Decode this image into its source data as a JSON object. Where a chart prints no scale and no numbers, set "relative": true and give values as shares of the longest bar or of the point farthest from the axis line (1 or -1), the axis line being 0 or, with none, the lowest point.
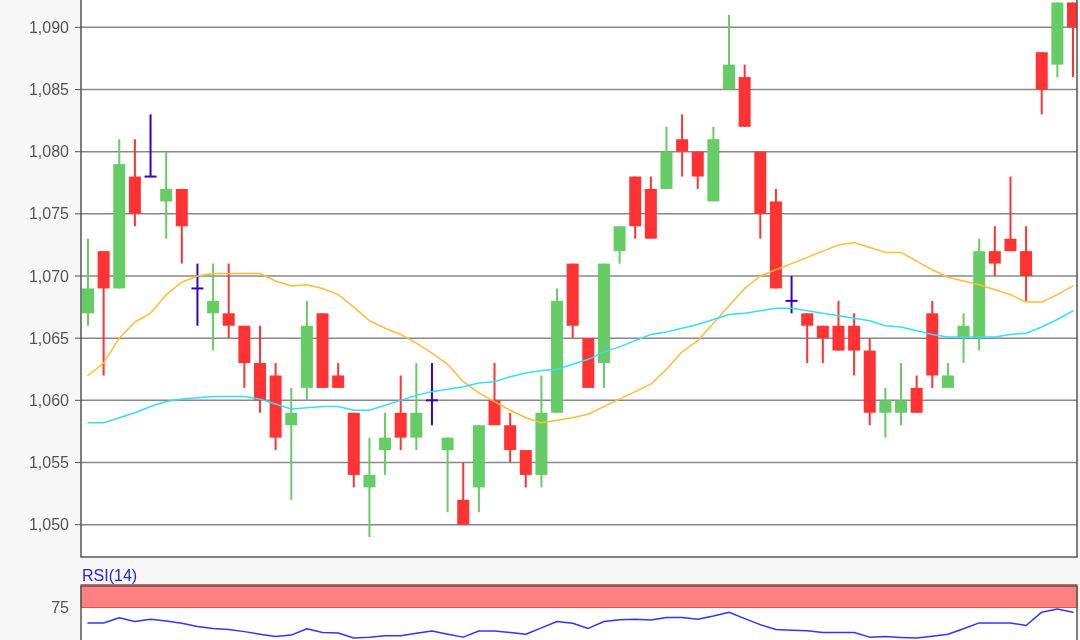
{
  "chart_data": [
    {
      "type": "candlestick",
      "categories": [
        null,
        null,
        null,
        null,
        null,
        null,
        null,
        null,
        null,
        null,
        null,
        null,
        null,
        null,
        null,
        null,
        null,
        null,
        null,
        null,
        null,
        null,
        null,
        null,
        null,
        null,
        null,
        null,
        null,
        null,
        null,
        null,
        null,
        null,
        null,
        null,
        null,
        null,
        null,
        null,
        null,
        null,
        null,
        null,
        null,
        null,
        null,
        null,
        null,
        null,
        null,
        null,
        null,
        null,
        null,
        null,
        null,
        null,
        null,
        null,
        null,
        null,
        null,
        null
      ],
      "ohlc": [
        [
          1067,
          1073,
          1066,
          1069
        ],
        [
          1072,
          1072,
          1062,
          1069
        ],
        [
          1069,
          1081,
          1069,
          1079
        ],
        [
          1078,
          1081,
          1074,
          1075
        ],
        [
          1078,
          1083,
          1078,
          1078
        ],
        [
          1076,
          1080,
          1073,
          1077
        ],
        [
          1077,
          1077,
          1071,
          1074
        ],
        [
          1069,
          1071,
          1066,
          1069
        ],
        [
          1067,
          1071,
          1064,
          1068
        ],
        [
          1067,
          1071,
          1065,
          1066
        ],
        [
          1066,
          1066,
          1061,
          1063
        ],
        [
          1063,
          1066,
          1059,
          1060
        ],
        [
          1062,
          1063,
          1056,
          1057
        ],
        [
          1058,
          1061,
          1052,
          1059
        ],
        [
          1061,
          1068,
          1060,
          1066
        ],
        [
          1067,
          1067,
          1061,
          1061
        ],
        [
          1062,
          1063,
          1061,
          1061
        ],
        [
          1059,
          1059,
          1053,
          1054
        ],
        [
          1053,
          1057,
          1049,
          1054
        ],
        [
          1056,
          1059,
          1054,
          1057
        ],
        [
          1059,
          1062,
          1056,
          1057
        ],
        [
          1057,
          1063,
          1056,
          1059
        ],
        [
          1060,
          1063,
          1058,
          1060
        ],
        [
          1056,
          1057,
          1051,
          1057
        ],
        [
          1052,
          1055,
          1050,
          1050
        ],
        [
          1053,
          1058,
          1051,
          1058
        ],
        [
          1060,
          1063,
          1058,
          1058
        ],
        [
          1058,
          1059,
          1055,
          1056
        ],
        [
          1056,
          1056,
          1053,
          1054
        ],
        [
          1054,
          1062,
          1053,
          1059
        ],
        [
          1059,
          1069,
          1059,
          1068
        ],
        [
          1071,
          1071,
          1065,
          1066
        ],
        [
          1065,
          1065,
          1061,
          1061
        ],
        [
          1063,
          1071,
          1061,
          1071
        ],
        [
          1072,
          1074,
          1071,
          1074
        ],
        [
          1078,
          1078,
          1073,
          1074
        ],
        [
          1077,
          1078,
          1073,
          1073
        ],
        [
          1077,
          1082,
          1077,
          1080
        ],
        [
          1081,
          1083,
          1078,
          1080
        ],
        [
          1080,
          1080,
          1077,
          1078
        ],
        [
          1076,
          1082,
          1076,
          1081
        ],
        [
          1085,
          1091,
          1085,
          1087
        ],
        [
          1086,
          1087,
          1082,
          1082
        ],
        [
          1080,
          1080,
          1073,
          1075
        ],
        [
          1076,
          1077,
          1069,
          1069
        ],
        [
          1068,
          1070,
          1067,
          1068
        ],
        [
          1067,
          1067,
          1063,
          1066
        ],
        [
          1066,
          1066,
          1063,
          1065
        ],
        [
          1066,
          1068,
          1064,
          1064
        ],
        [
          1066,
          1067,
          1062,
          1064
        ],
        [
          1064,
          1065,
          1058,
          1059
        ],
        [
          1059,
          1061,
          1057,
          1060
        ],
        [
          1059,
          1063,
          1058,
          1060
        ],
        [
          1061,
          1062,
          1059,
          1059
        ],
        [
          1067,
          1068,
          1061,
          1062
        ],
        [
          1061,
          1063,
          1061,
          1062
        ],
        [
          1065,
          1067,
          1063,
          1066
        ],
        [
          1065,
          1073,
          1064,
          1072
        ],
        [
          1072,
          1074,
          1070,
          1071
        ],
        [
          1073,
          1078,
          1072,
          1072
        ],
        [
          1072,
          1074,
          1068,
          1070
        ],
        [
          1088,
          1088,
          1083,
          1085
        ],
        [
          1087,
          1092,
          1086,
          1092
        ],
        [
          1092,
          1092,
          1086,
          1090
        ]
      ],
      "colors": [
        "#66cc66",
        "#ff3333",
        "#66cc66",
        "#ff3333",
        "#3300cc",
        "#66cc66",
        "#ff3333",
        "#3300cc",
        "#66cc66",
        "#ff3333",
        "#ff3333",
        "#ff3333",
        "#ff3333",
        "#66cc66",
        "#66cc66",
        "#ff3333",
        "#ff3333",
        "#ff3333",
        "#66cc66",
        "#66cc66",
        "#ff3333",
        "#66cc66",
        "#3300cc",
        "#66cc66",
        "#ff3333",
        "#66cc66",
        "#ff3333",
        "#ff3333",
        "#ff3333",
        "#66cc66",
        "#66cc66",
        "#ff3333",
        "#ff3333",
        "#66cc66",
        "#66cc66",
        "#ff3333",
        "#ff3333",
        "#66cc66",
        "#ff3333",
        "#ff3333",
        "#66cc66",
        "#66cc66",
        "#ff3333",
        "#ff3333",
        "#ff3333",
        "#3300cc",
        "#ff3333",
        "#ff3333",
        "#ff3333",
        "#ff3333",
        "#ff3333",
        "#66cc66",
        "#66cc66",
        "#ff3333",
        "#ff3333",
        "#66cc66",
        "#66cc66",
        "#66cc66",
        "#ff3333",
        "#ff3333",
        "#ff3333",
        "#ff3333",
        "#66cc66",
        "#ff3333"
      ],
      "series": [
        {
          "type": "line",
          "color": "#ffbb33",
          "values": [
            1062.0,
            1063.0,
            1065.0,
            1066.3,
            1067.0,
            1068.5,
            1069.5,
            1070.0,
            1070.2,
            1070.2,
            1070.2,
            1070.2,
            1069.6,
            1069.2,
            1069.3,
            1069.0,
            1068.5,
            1067.5,
            1066.4,
            1065.8,
            1065.3,
            1064.6,
            1063.8,
            1062.9,
            1061.5,
            1060.6,
            1059.9,
            1059.2,
            1058.6,
            1058.2,
            1058.4,
            1058.6,
            1058.9,
            1059.5,
            1060.1,
            1060.7,
            1061.3,
            1062.5,
            1063.9,
            1064.8,
            1066.2,
            1067.6,
            1069.0,
            1070.0,
            1070.5,
            1071.0,
            1071.5,
            1072.0,
            1072.5,
            1072.7,
            1072.3,
            1071.9,
            1071.9,
            1071.2,
            1070.5,
            1069.9,
            1069.6,
            1069.3,
            1068.9,
            1068.5,
            1067.9,
            1067.9,
            1068.5,
            1069.2
          ]
        },
        {
          "type": "line",
          "color": "#33ddff",
          "values": [
            1058.2,
            1058.2,
            1058.6,
            1059.0,
            1059.5,
            1059.9,
            1060.1,
            1060.2,
            1060.3,
            1060.3,
            1060.3,
            1060.1,
            1059.7,
            1059.3,
            1059.4,
            1059.5,
            1059.5,
            1059.2,
            1059.2,
            1059.6,
            1060.0,
            1060.4,
            1060.7,
            1060.9,
            1061.1,
            1061.4,
            1061.5,
            1061.9,
            1062.2,
            1062.4,
            1062.5,
            1062.9,
            1063.3,
            1063.9,
            1064.3,
            1064.8,
            1065.3,
            1065.5,
            1065.8,
            1066.1,
            1066.5,
            1066.9,
            1067.0,
            1067.2,
            1067.4,
            1067.4,
            1067.2,
            1067.0,
            1066.8,
            1066.6,
            1066.4,
            1066.0,
            1065.9,
            1065.6,
            1065.3,
            1065.1,
            1065.1,
            1065.1,
            1065.1,
            1065.3,
            1065.4,
            1065.9,
            1066.5,
            1067.2
          ]
        }
      ],
      "ylim": [
        1047.4,
        1092.2
      ],
      "yticks": [
        {
          "value": 1050,
          "label": "1,050"
        },
        {
          "value": 1055,
          "label": "1,055"
        },
        {
          "value": 1060,
          "label": "1,060"
        },
        {
          "value": 1065,
          "label": "1,065"
        },
        {
          "value": 1070,
          "label": "1,070"
        },
        {
          "value": 1075,
          "label": "1,075"
        },
        {
          "value": 1080,
          "label": "1,080"
        },
        {
          "value": 1085,
          "label": "1,085"
        },
        {
          "value": 1090,
          "label": "1,090"
        }
      ],
      "grid": "y",
      "tick_labels": "y"
    },
    {
      "type": "line",
      "title": "RSI(14)",
      "relative": true,
      "categories": [
        null,
        null,
        null,
        null,
        null,
        null,
        null,
        null,
        null,
        null,
        null,
        null,
        null,
        null,
        null,
        null,
        null,
        null,
        null,
        null,
        null,
        null,
        null,
        null,
        null,
        null,
        null,
        null,
        null,
        null,
        null,
        null,
        null,
        null,
        null,
        null,
        null,
        null,
        null,
        null,
        null,
        null,
        null,
        null,
        null,
        null,
        null,
        null,
        null,
        null,
        null,
        null,
        null,
        null,
        null,
        null,
        null,
        null,
        null,
        null,
        null,
        null,
        null,
        null
      ],
      "series": [
        {
          "color": "#3333ff",
          "values": [
            0.52,
            0.52,
            0.7,
            0.57,
            0.65,
            0.59,
            0.51,
            0.4,
            0.33,
            0.29,
            0.22,
            0.13,
            0.05,
            0.1,
            0.32,
            0.19,
            0.17,
            0,
            0.03,
            0.08,
            0.08,
            0.16,
            0.24,
            0.13,
            0.03,
            0.24,
            0.24,
            0.19,
            0.13,
            0.35,
            0.57,
            0.51,
            0.33,
            0.57,
            0.63,
            0.65,
            0.62,
            0.71,
            0.71,
            0.65,
            0.76,
            0.89,
            0.67,
            0.46,
            0.29,
            0.27,
            0.25,
            0.19,
            0.19,
            0.19,
            0.03,
            0.05,
            0.02,
            0,
            0.06,
            0.13,
            0.32,
            0.52,
            0.52,
            0.52,
            0.43,
            0.89,
            1,
            0.89
          ]
        }
      ],
      "bands": [
        {
          "axis": "y",
          "from": 1.05,
          "to": 1.84,
          "color": "#ff8080"
        }
      ],
      "annotations": [
        "75"
      ],
      "tick_labels": false
    }
  ]
}
